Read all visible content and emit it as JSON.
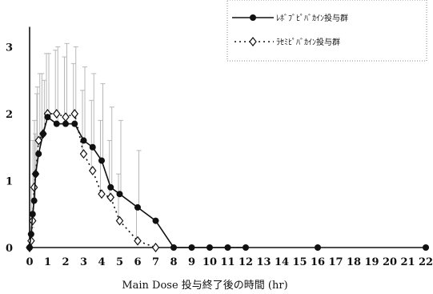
{
  "chart_data": {
    "type": "line",
    "title": "",
    "xlabel": "Main Dose 投与終了後の時間 (hr)",
    "ylabel": "",
    "xlim": [
      0,
      22
    ],
    "ylim": [
      0,
      3.3
    ],
    "x_ticks": [
      0,
      1,
      2,
      3,
      4,
      5,
      6,
      7,
      8,
      9,
      10,
      11,
      12,
      13,
      14,
      15,
      16,
      17,
      18,
      19,
      20,
      21,
      22
    ],
    "y_ticks": [
      0,
      1,
      2,
      3
    ],
    "grid": false,
    "legend_position": "top-right",
    "series": [
      {
        "name": "ﾚﾎﾞﾌﾞﾋﾟﾊﾞｶｲﾝ投与群",
        "marker": "filled-circle",
        "line": "solid",
        "x": [
          0,
          0.083,
          0.167,
          0.25,
          0.333,
          0.5,
          0.75,
          1,
          1.5,
          2,
          2.5,
          3,
          3.5,
          4,
          4.5,
          5,
          6,
          7,
          8,
          9,
          10,
          11,
          12,
          16,
          22
        ],
        "y": [
          0,
          0.2,
          0.5,
          0.7,
          1.1,
          1.4,
          1.7,
          1.95,
          1.85,
          1.85,
          1.85,
          1.6,
          1.5,
          1.3,
          0.9,
          0.8,
          0.6,
          0.4,
          0,
          0,
          0,
          0,
          0,
          0,
          0
        ],
        "error_upper": [
          0,
          0.3,
          1.1,
          1.7,
          2.3,
          2.6,
          2.5,
          2.9,
          3.0,
          3.05,
          3.0,
          2.7,
          2.6,
          2.45,
          2.1,
          1.9,
          1.45,
          0,
          0,
          0,
          0,
          0,
          0,
          0,
          0
        ]
      },
      {
        "name": "ﾗｾﾐﾋﾟﾊﾞｶｲﾝ投与群",
        "marker": "open-diamond",
        "line": "dotted",
        "x": [
          0,
          0.083,
          0.167,
          0.25,
          0.333,
          0.5,
          0.75,
          1,
          1.5,
          2,
          2.5,
          3,
          3.5,
          4,
          4.5,
          5,
          6,
          7
        ],
        "y": [
          0,
          0.1,
          0.4,
          0.9,
          1.1,
          1.6,
          1.7,
          2.0,
          2.0,
          1.95,
          2.0,
          1.4,
          1.15,
          0.8,
          0.75,
          0.4,
          0.1,
          0
        ],
        "error_upper": [
          0,
          0.2,
          0.9,
          1.6,
          1.9,
          2.4,
          2.6,
          2.9,
          2.95,
          2.85,
          2.75,
          2.35,
          2.2,
          1.9,
          1.6,
          1.1,
          0.6,
          0
        ]
      }
    ]
  }
}
